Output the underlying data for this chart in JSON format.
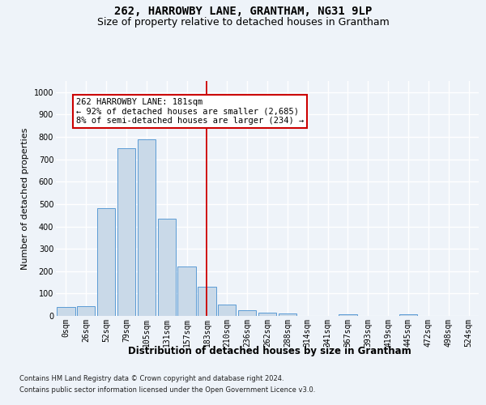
{
  "title": "262, HARROWBY LANE, GRANTHAM, NG31 9LP",
  "subtitle": "Size of property relative to detached houses in Grantham",
  "xlabel": "Distribution of detached houses by size in Grantham",
  "ylabel": "Number of detached properties",
  "bar_labels": [
    "0sqm",
    "26sqm",
    "52sqm",
    "79sqm",
    "105sqm",
    "131sqm",
    "157sqm",
    "183sqm",
    "210sqm",
    "236sqm",
    "262sqm",
    "288sqm",
    "314sqm",
    "341sqm",
    "367sqm",
    "393sqm",
    "419sqm",
    "445sqm",
    "472sqm",
    "498sqm",
    "524sqm"
  ],
  "bar_values": [
    40,
    42,
    480,
    750,
    790,
    435,
    220,
    130,
    52,
    27,
    15,
    10,
    0,
    0,
    7,
    0,
    0,
    7,
    0,
    0,
    0
  ],
  "bar_color": "#c9d9e8",
  "bar_edge_color": "#5b9bd5",
  "background_color": "#eef3f9",
  "grid_color": "#ffffff",
  "ylim": [
    0,
    1050
  ],
  "yticks": [
    0,
    100,
    200,
    300,
    400,
    500,
    600,
    700,
    800,
    900,
    1000
  ],
  "vline_x": 7,
  "vline_color": "#cc0000",
  "annotation_text": "262 HARROWBY LANE: 181sqm\n← 92% of detached houses are smaller (2,685)\n8% of semi-detached houses are larger (234) →",
  "annotation_box_color": "#ffffff",
  "annotation_box_edge": "#cc0000",
  "footer_line1": "Contains HM Land Registry data © Crown copyright and database right 2024.",
  "footer_line2": "Contains public sector information licensed under the Open Government Licence v3.0.",
  "title_fontsize": 10,
  "subtitle_fontsize": 9,
  "tick_fontsize": 7,
  "ylabel_fontsize": 8,
  "xlabel_fontsize": 8.5,
  "annotation_fontsize": 7.5,
  "footer_fontsize": 6
}
